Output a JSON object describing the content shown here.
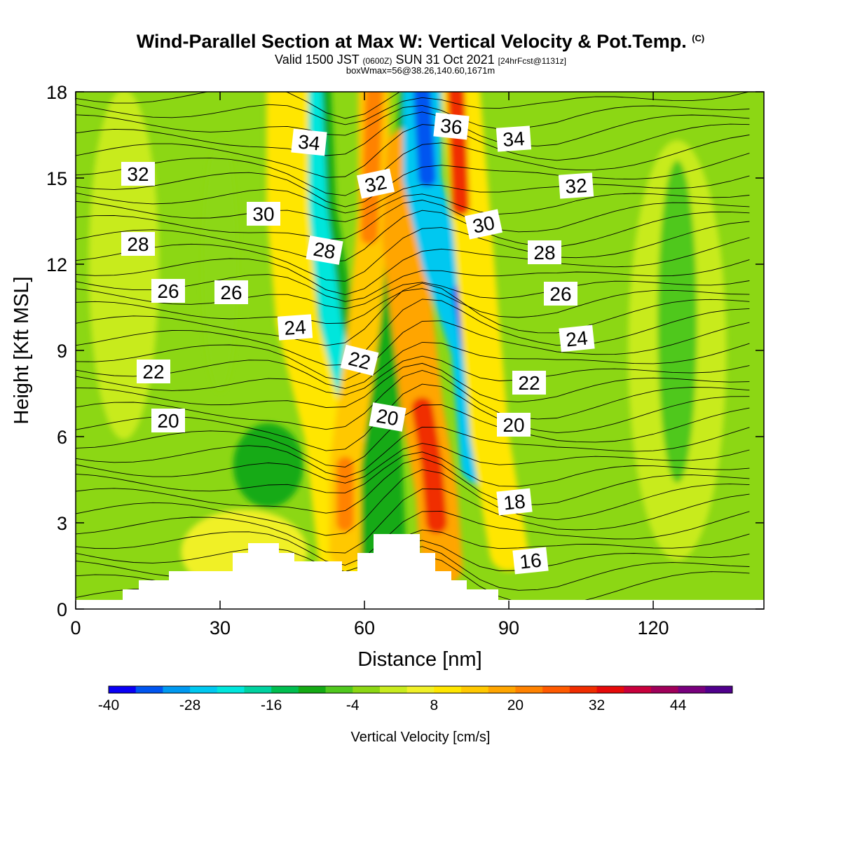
{
  "title": {
    "main": "Wind-Parallel Section at Max W: Vertical Velocity & Pot.Temp.",
    "main_unit": "(C)",
    "valid_a": "Valid 1500 JST",
    "valid_b": "(0600Z)",
    "valid_c": "SUN 31 Oct 2021",
    "valid_d": "[24hrFcst@1131z]",
    "box": "boxWmax=56@38.26,140.60,1671m"
  },
  "chart_data": {
    "type": "heatmap",
    "xlabel": "Distance [nm]",
    "ylabel": "Height [Kft MSL]",
    "xlim": [
      0,
      143
    ],
    "ylim": [
      0,
      18
    ],
    "x_ticks": [
      "0",
      "30",
      "60",
      "90",
      "120"
    ],
    "y_ticks": [
      "0",
      "3",
      "6",
      "9",
      "12",
      "15",
      "18"
    ],
    "colorbar": {
      "label": "Vertical Velocity [cm/s]",
      "tick_labels": [
        "-40",
        "-28",
        "-16",
        "-4",
        "8",
        "20",
        "32",
        "44"
      ],
      "colors": [
        "#0a00f5",
        "#0055f0",
        "#0099f0",
        "#00c8f0",
        "#00e6dc",
        "#00d2a0",
        "#00be50",
        "#14aa14",
        "#50c81e",
        "#8cd714",
        "#c8eb1e",
        "#f0f028",
        "#ffe600",
        "#ffc800",
        "#ffa500",
        "#ff8200",
        "#ff5a00",
        "#f02d00",
        "#e60a0a",
        "#c8003c",
        "#a0005a",
        "#78007d",
        "#50008c"
      ]
    },
    "potential_temperature_labels": [
      "16",
      "18",
      "20",
      "22",
      "24",
      "26",
      "28",
      "30",
      "32",
      "34",
      "36"
    ]
  }
}
